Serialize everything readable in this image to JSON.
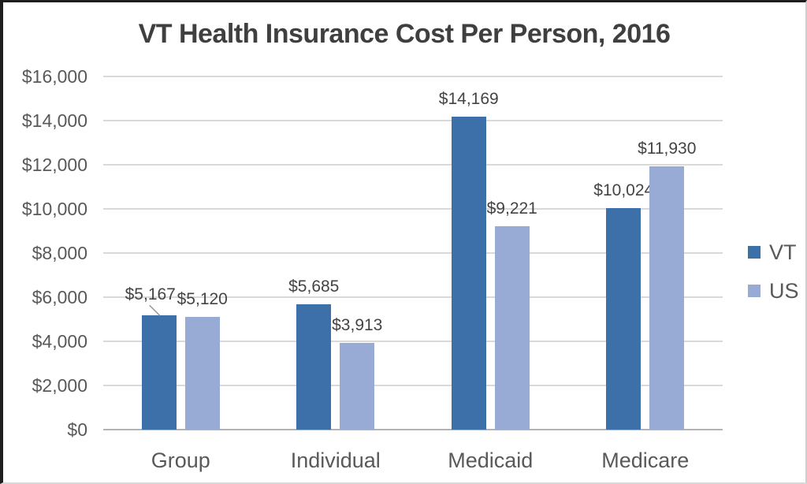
{
  "chart_data": {
    "type": "bar",
    "title": "VT Health Insurance Cost Per Person, 2016",
    "categories": [
      "Group",
      "Individual",
      "Medicaid",
      "Medicare"
    ],
    "series": [
      {
        "name": "VT",
        "color": "#3D6FA9",
        "values": [
          5167,
          5685,
          14169,
          10024
        ],
        "data_labels": [
          "$5,167",
          "$5,685",
          "$14,169",
          "$10,024"
        ]
      },
      {
        "name": "US",
        "color": "#97ABD5",
        "values": [
          5120,
          3913,
          9221,
          11930
        ],
        "data_labels": [
          "$5,120",
          "$3,913",
          "$9,221",
          "$11,930"
        ]
      }
    ],
    "y_axis": {
      "min": 0,
      "max": 16000,
      "step": 2000,
      "tick_labels": [
        "$0",
        "$2,000",
        "$4,000",
        "$6,000",
        "$8,000",
        "$10,000",
        "$12,000",
        "$14,000",
        "$16,000"
      ]
    },
    "x_axis": {
      "labels": [
        "Group",
        "Individual",
        "Medicaid",
        "Medicare"
      ]
    },
    "legend": {
      "position": "right",
      "entries": [
        "VT",
        "US"
      ]
    },
    "grid": true,
    "ylim": [
      0,
      16000
    ]
  },
  "colors": {
    "vt_bar": "#3D6FA9",
    "us_bar": "#97ABD5",
    "title_text": "#3F3F3F",
    "axis_text": "#595959",
    "data_label_text": "#444444",
    "gridline": "#D9D9D9",
    "axis_line": "#B3B3B3",
    "background": "#FFFFFF"
  }
}
